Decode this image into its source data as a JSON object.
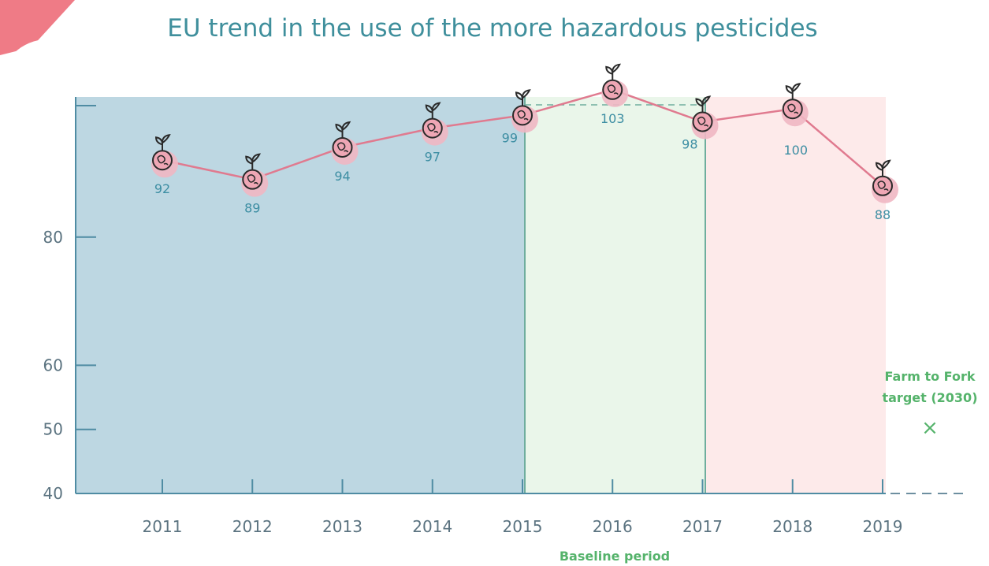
{
  "chart_data": {
    "type": "line",
    "title": "EU trend in the use of the more hazardous pesticides",
    "xlabel": "",
    "ylabel": "",
    "categories": [
      "2011",
      "2012",
      "2013",
      "2014",
      "2015",
      "2016",
      "2017",
      "2018",
      "2019"
    ],
    "series": [
      {
        "values": [
          92,
          89,
          94,
          97,
          99,
          103,
          98,
          100,
          88
        ]
      }
    ],
    "y_ticks": [
      40,
      50,
      60,
      80
    ],
    "baseline_label": "Baseline period",
    "baseline_years": [
      "2015",
      "2017"
    ],
    "target": {
      "label_line1": "Farm to Fork",
      "label_line2": "target (2030)",
      "marker": "×",
      "value": 50
    },
    "colors": {
      "title": "#3f8f9c",
      "line": "#e07a8f",
      "region_historic": "#bdd7e2",
      "region_baseline": "#eaf6ea",
      "region_after": "#fdeaea",
      "values": "#3d8ea3",
      "target": "#55b36b"
    }
  }
}
